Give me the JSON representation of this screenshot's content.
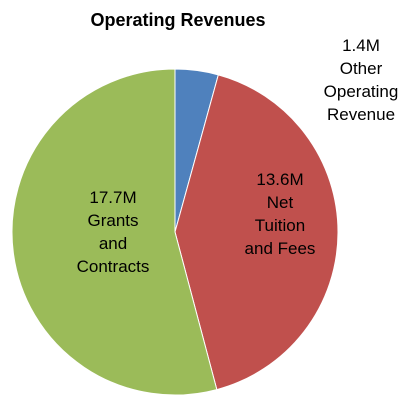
{
  "chart_data": {
    "type": "pie",
    "title": "Operating Revenues",
    "categories": [
      "Other Operating Revenue",
      "Net Tuition and Fees",
      "Grants and Contracts"
    ],
    "values": [
      1.4,
      13.6,
      17.7
    ],
    "value_labels": [
      "1.4M",
      "13.6M",
      "17.7M"
    ],
    "colors": [
      "#4f81bd",
      "#c0504d",
      "#9bbb59"
    ]
  }
}
